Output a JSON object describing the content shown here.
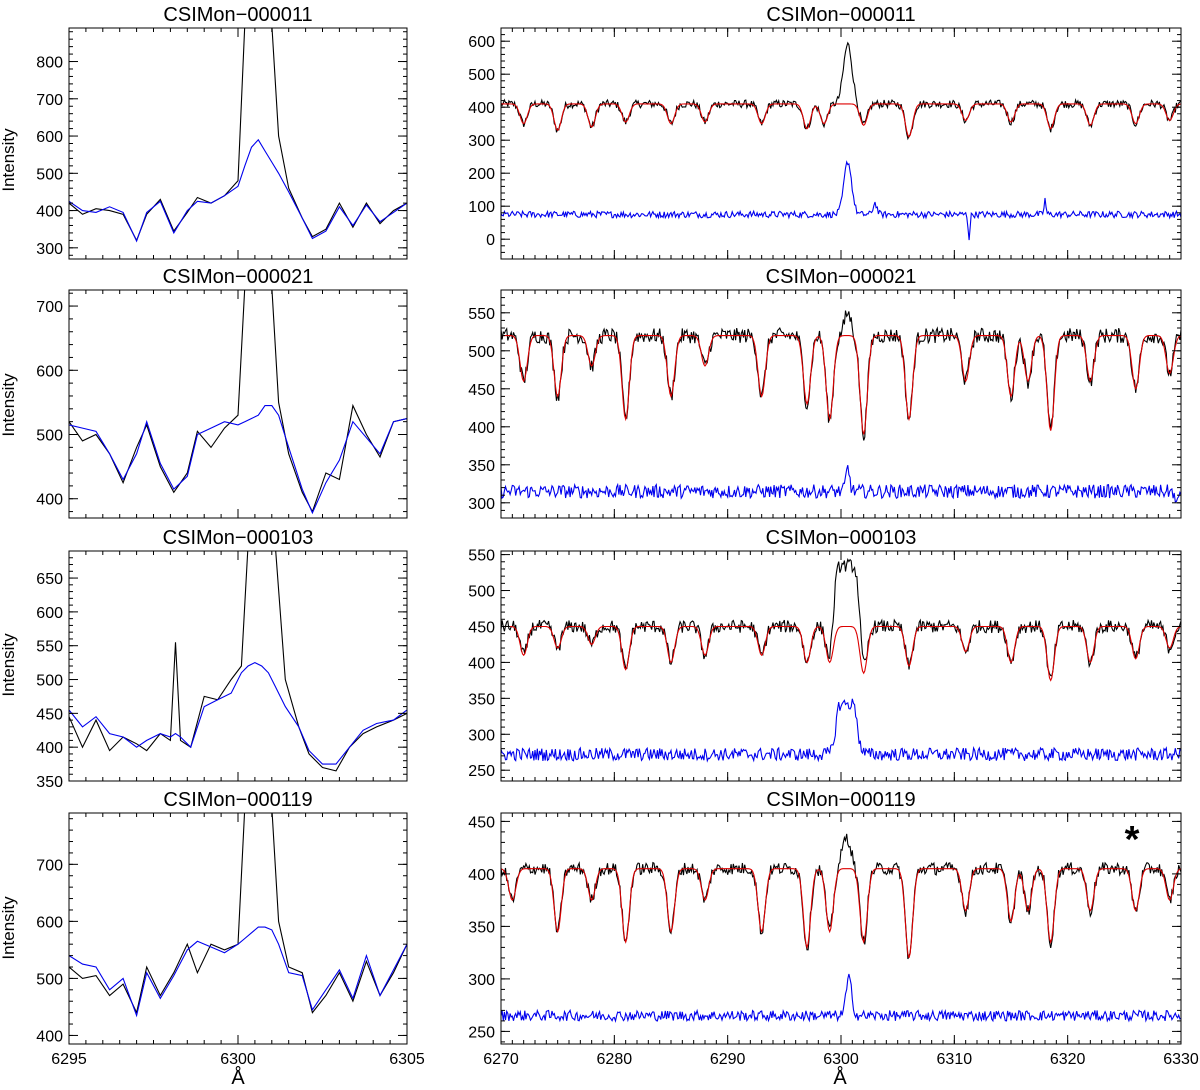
{
  "figure": {
    "ylabel": "Intensity",
    "xlabel": "Å",
    "marker": "*"
  },
  "colors": {
    "observed": "#000000",
    "model": "#dd0000",
    "residual": "#0000ee"
  },
  "chart_data": [
    {
      "type": "line",
      "title": "CSIMon−000011",
      "xlabel": "",
      "ylabel": "Intensity",
      "xlim": [
        6295,
        6305
      ],
      "ylim": [
        270,
        890
      ],
      "xticks": [
        6295,
        6300,
        6305
      ],
      "yticks": [
        300,
        400,
        500,
        600,
        700,
        800
      ],
      "series": [
        {
          "color": "black",
          "x": [
            6295,
            6295.4,
            6295.8,
            6296.2,
            6296.6,
            6297.0,
            6297.3,
            6297.7,
            6298.1,
            6298.5,
            6298.8,
            6299.2,
            6299.6,
            6300.0,
            6300.2,
            6300.4,
            6300.6,
            6300.8,
            6301.0,
            6301.2,
            6301.5,
            6301.9,
            6302.2,
            6302.6,
            6303.0,
            6303.4,
            6303.8,
            6304.2,
            6304.6,
            6305
          ],
          "y": [
            420,
            390,
            405,
            400,
            390,
            320,
            390,
            430,
            345,
            395,
            435,
            420,
            440,
            480,
            900,
            900,
            900,
            900,
            900,
            600,
            460,
            380,
            330,
            350,
            420,
            355,
            420,
            365,
            400,
            420
          ]
        },
        {
          "color": "blue",
          "x": [
            6295,
            6295.4,
            6295.8,
            6296.2,
            6296.6,
            6297.0,
            6297.3,
            6297.7,
            6298.1,
            6298.5,
            6298.8,
            6299.2,
            6299.6,
            6300.0,
            6300.2,
            6300.4,
            6300.6,
            6300.8,
            6301.0,
            6301.2,
            6301.5,
            6301.9,
            6302.2,
            6302.6,
            6303.0,
            6303.4,
            6303.8,
            6304.2,
            6304.6,
            6305
          ],
          "y": [
            425,
            400,
            395,
            410,
            395,
            318,
            395,
            425,
            340,
            400,
            425,
            420,
            440,
            465,
            520,
            570,
            590,
            560,
            530,
            500,
            450,
            380,
            325,
            345,
            410,
            360,
            415,
            370,
            395,
            420
          ]
        }
      ]
    },
    {
      "type": "line",
      "title": "CSIMon−000011",
      "xlabel": "",
      "ylabel": "",
      "xlim": [
        6270,
        6330
      ],
      "ylim": [
        -60,
        640
      ],
      "xticks": [
        6270,
        6280,
        6290,
        6300,
        6310,
        6320,
        6330
      ],
      "yticks": [
        0,
        100,
        200,
        300,
        400,
        500,
        600
      ],
      "baselines": [
        410,
        410,
        75
      ],
      "noise": [
        12,
        0,
        10
      ],
      "dips": [
        [
          6272,
          60
        ],
        [
          6275,
          80
        ],
        [
          6278,
          70
        ],
        [
          6281,
          55
        ],
        [
          6285,
          60
        ],
        [
          6288,
          55
        ],
        [
          6293,
          60
        ],
        [
          6297,
          75
        ],
        [
          6298.5,
          60
        ],
        [
          6302,
          65
        ],
        [
          6306,
          100
        ],
        [
          6311,
          50
        ],
        [
          6315,
          55
        ],
        [
          6318.5,
          75
        ],
        [
          6322,
          65
        ],
        [
          6326,
          60
        ],
        [
          6329,
          50
        ]
      ],
      "features": [
        {
          "series": 0,
          "center": 6300.6,
          "width": 0.9,
          "height": 180,
          "flat": false
        },
        {
          "series": 2,
          "center": 6300.6,
          "width": 0.8,
          "height": 160,
          "flat": false
        },
        {
          "series": 2,
          "center": 6303,
          "width": 0.4,
          "height": 35,
          "flat": false
        },
        {
          "series": 2,
          "center": 6311.3,
          "width": 0.2,
          "height": -70,
          "flat": false
        },
        {
          "series": 2,
          "center": 6318,
          "width": 0.2,
          "height": 45,
          "flat": false
        }
      ]
    },
    {
      "type": "line",
      "title": "CSIMon−000021",
      "xlabel": "",
      "ylabel": "Intensity",
      "xlim": [
        6295,
        6305
      ],
      "ylim": [
        370,
        725
      ],
      "xticks": [
        6295,
        6300,
        6305
      ],
      "yticks": [
        400,
        500,
        600,
        700
      ],
      "series": [
        {
          "color": "black",
          "x": [
            6295,
            6295.4,
            6295.8,
            6296.2,
            6296.6,
            6297.0,
            6297.3,
            6297.7,
            6298.1,
            6298.5,
            6298.8,
            6299.2,
            6299.6,
            6300.0,
            6300.2,
            6300.4,
            6300.6,
            6300.8,
            6301.0,
            6301.2,
            6301.5,
            6301.9,
            6302.2,
            6302.6,
            6303.0,
            6303.4,
            6303.8,
            6304.2,
            6304.6,
            6305
          ],
          "y": [
            520,
            490,
            500,
            470,
            425,
            480,
            515,
            450,
            410,
            440,
            505,
            480,
            510,
            530,
            730,
            730,
            730,
            730,
            730,
            550,
            470,
            410,
            380,
            440,
            430,
            545,
            500,
            465,
            520,
            525
          ]
        },
        {
          "color": "blue",
          "x": [
            6295,
            6295.4,
            6295.8,
            6296.2,
            6296.6,
            6297.0,
            6297.3,
            6297.7,
            6298.1,
            6298.5,
            6298.8,
            6299.2,
            6299.6,
            6300.0,
            6300.2,
            6300.4,
            6300.6,
            6300.8,
            6301.0,
            6301.2,
            6301.5,
            6301.9,
            6302.2,
            6302.6,
            6303.0,
            6303.4,
            6303.8,
            6304.2,
            6304.6,
            6305
          ],
          "y": [
            515,
            510,
            505,
            470,
            430,
            470,
            520,
            455,
            415,
            435,
            500,
            510,
            520,
            515,
            520,
            525,
            530,
            545,
            545,
            530,
            480,
            415,
            378,
            425,
            460,
            520,
            495,
            470,
            520,
            525
          ]
        }
      ]
    },
    {
      "type": "line",
      "title": "CSIMon−000021",
      "xlabel": "",
      "ylabel": "",
      "xlim": [
        6270,
        6330
      ],
      "ylim": [
        280,
        580
      ],
      "xticks": [
        6270,
        6280,
        6290,
        6300,
        6310,
        6320,
        6330
      ],
      "yticks": [
        300,
        350,
        400,
        450,
        500,
        550
      ],
      "baselines": [
        520,
        520,
        315
      ],
      "noise": [
        10,
        0,
        9
      ],
      "dips": [
        [
          6272,
          60
        ],
        [
          6275,
          80
        ],
        [
          6278,
          40
        ],
        [
          6281,
          110
        ],
        [
          6285,
          80
        ],
        [
          6288,
          40
        ],
        [
          6293,
          80
        ],
        [
          6297,
          90
        ],
        [
          6299,
          110
        ],
        [
          6302,
          130
        ],
        [
          6306,
          110
        ],
        [
          6311,
          60
        ],
        [
          6315,
          80
        ],
        [
          6316.5,
          60
        ],
        [
          6318.5,
          125
        ],
        [
          6322,
          60
        ],
        [
          6326,
          70
        ],
        [
          6329,
          50
        ]
      ],
      "features": [
        {
          "series": 0,
          "center": 6300.6,
          "width": 0.7,
          "height": 30,
          "flat": false
        },
        {
          "series": 2,
          "center": 6300.6,
          "width": 0.4,
          "height": 30,
          "flat": false
        },
        {
          "series": 2,
          "center": 6329.6,
          "width": 0.3,
          "height": -20,
          "flat": false
        }
      ]
    },
    {
      "type": "line",
      "title": "CSIMon−000103",
      "xlabel": "",
      "ylabel": "Intensity",
      "xlim": [
        6295,
        6305
      ],
      "ylim": [
        350,
        690
      ],
      "xticks": [
        6295,
        6300,
        6305
      ],
      "yticks": [
        350,
        400,
        450,
        500,
        550,
        600,
        650
      ],
      "series": [
        {
          "color": "black",
          "x": [
            6295,
            6295.4,
            6295.8,
            6296.2,
            6296.6,
            6297.0,
            6297.3,
            6297.7,
            6298.0,
            6298.15,
            6298.3,
            6298.6,
            6299.0,
            6299.4,
            6299.8,
            6300.1,
            6300.3,
            6300.5,
            6300.7,
            6300.9,
            6301.1,
            6301.4,
            6301.8,
            6302.1,
            6302.5,
            6302.9,
            6303.3,
            6303.7,
            6304.1,
            6304.6,
            6305
          ],
          "y": [
            445,
            400,
            440,
            395,
            415,
            405,
            395,
            420,
            410,
            555,
            410,
            400,
            475,
            470,
            500,
            520,
            700,
            700,
            700,
            700,
            700,
            500,
            430,
            390,
            370,
            365,
            400,
            420,
            430,
            440,
            450
          ]
        },
        {
          "color": "blue",
          "x": [
            6295,
            6295.4,
            6295.8,
            6296.2,
            6296.6,
            6297.0,
            6297.3,
            6297.7,
            6298.0,
            6298.15,
            6298.3,
            6298.6,
            6299.0,
            6299.4,
            6299.8,
            6300.1,
            6300.3,
            6300.5,
            6300.7,
            6300.9,
            6301.1,
            6301.4,
            6301.8,
            6302.1,
            6302.5,
            6302.9,
            6303.3,
            6303.7,
            6304.1,
            6304.6,
            6305
          ],
          "y": [
            455,
            430,
            445,
            420,
            415,
            400,
            410,
            420,
            415,
            420,
            415,
            400,
            460,
            470,
            480,
            510,
            520,
            525,
            520,
            510,
            490,
            460,
            430,
            395,
            375,
            375,
            400,
            425,
            435,
            440,
            455
          ]
        }
      ]
    },
    {
      "type": "line",
      "title": "CSIMon−000103",
      "xlabel": "",
      "ylabel": "",
      "xlim": [
        6270,
        6330
      ],
      "ylim": [
        235,
        555
      ],
      "xticks": [
        6270,
        6280,
        6290,
        6300,
        6310,
        6320,
        6330
      ],
      "yticks": [
        250,
        300,
        350,
        400,
        450,
        500,
        550
      ],
      "baselines": [
        450,
        450,
        272
      ],
      "noise": [
        9,
        0,
        9
      ],
      "dips": [
        [
          6272,
          40
        ],
        [
          6275,
          30
        ],
        [
          6278,
          25
        ],
        [
          6281,
          60
        ],
        [
          6285,
          50
        ],
        [
          6288,
          40
        ],
        [
          6293,
          40
        ],
        [
          6297,
          50
        ],
        [
          6299,
          50
        ],
        [
          6302,
          65
        ],
        [
          6306,
          55
        ],
        [
          6311,
          35
        ],
        [
          6315,
          50
        ],
        [
          6318.5,
          75
        ],
        [
          6322,
          50
        ],
        [
          6326,
          45
        ],
        [
          6329,
          30
        ]
      ],
      "features": [
        {
          "series": 0,
          "center": 6300.5,
          "width": 1.2,
          "height": 85,
          "flat": true
        },
        {
          "series": 2,
          "center": 6300.5,
          "width": 1.0,
          "height": 70,
          "flat": true
        }
      ]
    },
    {
      "type": "line",
      "title": "CSIMon−000119",
      "xlabel": "Å",
      "ylabel": "Intensity",
      "xlim": [
        6295,
        6305
      ],
      "ylim": [
        385,
        790
      ],
      "xticks": [
        6295,
        6300,
        6305
      ],
      "yticks": [
        400,
        500,
        600,
        700
      ],
      "series": [
        {
          "color": "black",
          "x": [
            6295,
            6295.4,
            6295.8,
            6296.2,
            6296.6,
            6297.0,
            6297.3,
            6297.7,
            6298.1,
            6298.5,
            6298.8,
            6299.2,
            6299.6,
            6300.0,
            6300.2,
            6300.4,
            6300.6,
            6300.8,
            6301.0,
            6301.2,
            6301.5,
            6301.9,
            6302.2,
            6302.6,
            6303.0,
            6303.4,
            6303.8,
            6304.2,
            6304.6,
            6305
          ],
          "y": [
            520,
            500,
            505,
            470,
            490,
            440,
            520,
            470,
            510,
            560,
            510,
            560,
            550,
            560,
            800,
            800,
            800,
            800,
            800,
            600,
            520,
            510,
            440,
            470,
            510,
            460,
            530,
            470,
            510,
            560
          ]
        },
        {
          "color": "blue",
          "x": [
            6295,
            6295.4,
            6295.8,
            6296.2,
            6296.6,
            6297.0,
            6297.3,
            6297.7,
            6298.1,
            6298.5,
            6298.8,
            6299.2,
            6299.6,
            6300.0,
            6300.2,
            6300.4,
            6300.6,
            6300.8,
            6301.0,
            6301.2,
            6301.5,
            6301.9,
            6302.2,
            6302.6,
            6303.0,
            6303.4,
            6303.8,
            6304.2,
            6304.6,
            6305
          ],
          "y": [
            540,
            525,
            520,
            480,
            500,
            435,
            510,
            465,
            505,
            550,
            565,
            555,
            545,
            560,
            570,
            580,
            590,
            590,
            585,
            560,
            510,
            505,
            445,
            480,
            515,
            465,
            540,
            470,
            515,
            560
          ]
        }
      ]
    },
    {
      "type": "line",
      "title": "CSIMon−000119",
      "xlabel": "Å",
      "ylabel": "",
      "xlim": [
        6270,
        6330
      ],
      "ylim": [
        238,
        458
      ],
      "xticks": [
        6270,
        6280,
        6290,
        6300,
        6310,
        6320,
        6330
      ],
      "yticks": [
        250,
        300,
        350,
        400,
        450
      ],
      "baselines": [
        405,
        405,
        265
      ],
      "noise": [
        6,
        0,
        5
      ],
      "dips": [
        [
          6271,
          30
        ],
        [
          6275,
          60
        ],
        [
          6278,
          30
        ],
        [
          6281,
          70
        ],
        [
          6285,
          60
        ],
        [
          6288,
          30
        ],
        [
          6293,
          60
        ],
        [
          6297,
          75
        ],
        [
          6299,
          60
        ],
        [
          6302,
          70
        ],
        [
          6306,
          85
        ],
        [
          6311,
          40
        ],
        [
          6315,
          50
        ],
        [
          6316.5,
          40
        ],
        [
          6318.5,
          70
        ],
        [
          6322,
          40
        ],
        [
          6326,
          40
        ],
        [
          6329,
          30
        ]
      ],
      "features": [
        {
          "series": 0,
          "center": 6300.5,
          "width": 0.9,
          "height": 30,
          "flat": false
        },
        {
          "series": 2,
          "center": 6300.7,
          "width": 0.6,
          "height": 35,
          "flat": false
        }
      ]
    }
  ]
}
